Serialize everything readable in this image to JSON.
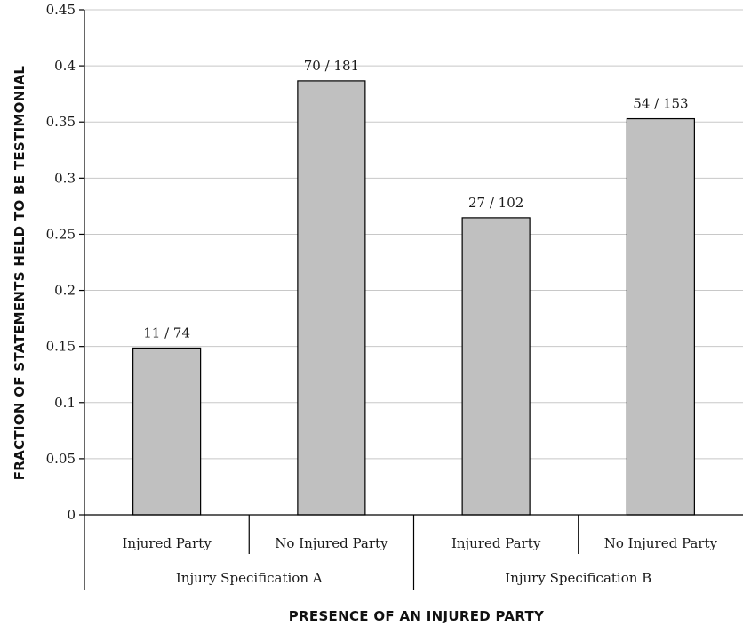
{
  "chart_data": {
    "type": "bar",
    "title": "",
    "xlabel": "PRESENCE OF AN INJURED PARTY",
    "ylabel": "FRACTION OF STATEMENTS HELD TO BE TESTIMONIAL",
    "ylim": [
      0,
      0.45
    ],
    "yticks": [
      "0",
      "0.05",
      "0.1",
      "0.15",
      "0.2",
      "0.25",
      "0.3",
      "0.35",
      "0.4",
      "0.45"
    ],
    "grid": true,
    "groups": [
      {
        "label": "Injury Specification A",
        "categories": [
          "Injured Party",
          "No Injured Party"
        ]
      },
      {
        "label": "Injury Specification B",
        "categories": [
          "Injured Party",
          "No Injured Party"
        ]
      }
    ],
    "categories": [
      "Injured Party",
      "No Injured Party",
      "Injured Party",
      "No Injured Party"
    ],
    "values": [
      0.1486,
      0.3867,
      0.2647,
      0.3529
    ],
    "data_labels": [
      "11 / 74",
      "70 / 181",
      "27 / 102",
      "54 / 153"
    ],
    "colors": {
      "bar_fill": "#c0c0c0",
      "bar_stroke": "#000000",
      "grid": "#c8c8c8"
    }
  }
}
